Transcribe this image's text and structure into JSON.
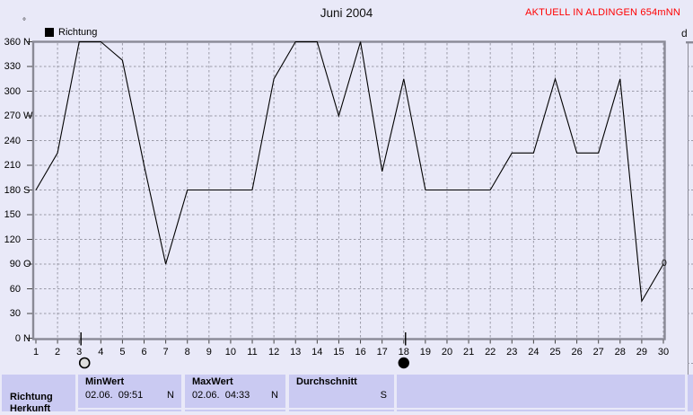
{
  "header": {
    "title": "Juni 2004",
    "status": "AKTUELL IN ALDINGEN 654mNN",
    "status_color": "#ff0000",
    "axis_unit": "°"
  },
  "legend": {
    "label": "Richtung",
    "swatch_color": "#000000"
  },
  "chart_data": {
    "type": "line",
    "title": "Juni 2004",
    "x": [
      1,
      2,
      3,
      4,
      5,
      6,
      7,
      8,
      9,
      10,
      11,
      12,
      13,
      14,
      15,
      16,
      17,
      18,
      19,
      20,
      21,
      22,
      23,
      24,
      25,
      26,
      27,
      28,
      29,
      30
    ],
    "series": [
      {
        "name": "Richtung",
        "values": [
          180,
          225,
          360,
          360,
          337.5,
          210,
          90,
          180,
          180,
          180,
          180,
          315,
          360,
          360,
          270,
          360,
          202.5,
          315,
          180,
          180,
          180,
          180,
          225,
          225,
          315,
          225,
          225,
          315,
          45,
          90
        ]
      }
    ],
    "ylim": [
      0,
      360
    ],
    "y_tick_step": 30,
    "y_ticks": [
      {
        "value": 360,
        "dir": "N"
      },
      {
        "value": 330,
        "dir": ""
      },
      {
        "value": 300,
        "dir": ""
      },
      {
        "value": 270,
        "dir": "W"
      },
      {
        "value": 240,
        "dir": ""
      },
      {
        "value": 210,
        "dir": ""
      },
      {
        "value": 180,
        "dir": "S"
      },
      {
        "value": 150,
        "dir": ""
      },
      {
        "value": 120,
        "dir": ""
      },
      {
        "value": 90,
        "dir": "O"
      },
      {
        "value": 60,
        "dir": ""
      },
      {
        "value": 30,
        "dir": ""
      },
      {
        "value": 0,
        "dir": "N"
      }
    ],
    "grid": true,
    "legend_position": "top-left",
    "line_color": "#000000",
    "moon_markers": [
      {
        "day": 3,
        "type": "full-moon"
      },
      {
        "day": 18,
        "type": "new-moon"
      }
    ]
  },
  "table": {
    "row_label": "Richtung",
    "row_label_line2": "Herkunft",
    "min": {
      "header": "MinWert",
      "value": "02.06.  09:51",
      "dir": "N"
    },
    "max": {
      "header": "MaxWert",
      "value": "02.06.  04:33",
      "dir": "N"
    },
    "avg": {
      "header": "Durchschnitt",
      "dir": "S"
    },
    "cell_color": "#cacaf2"
  },
  "right_fragment": {
    "top_text": "d",
    "zero_label": "0"
  }
}
